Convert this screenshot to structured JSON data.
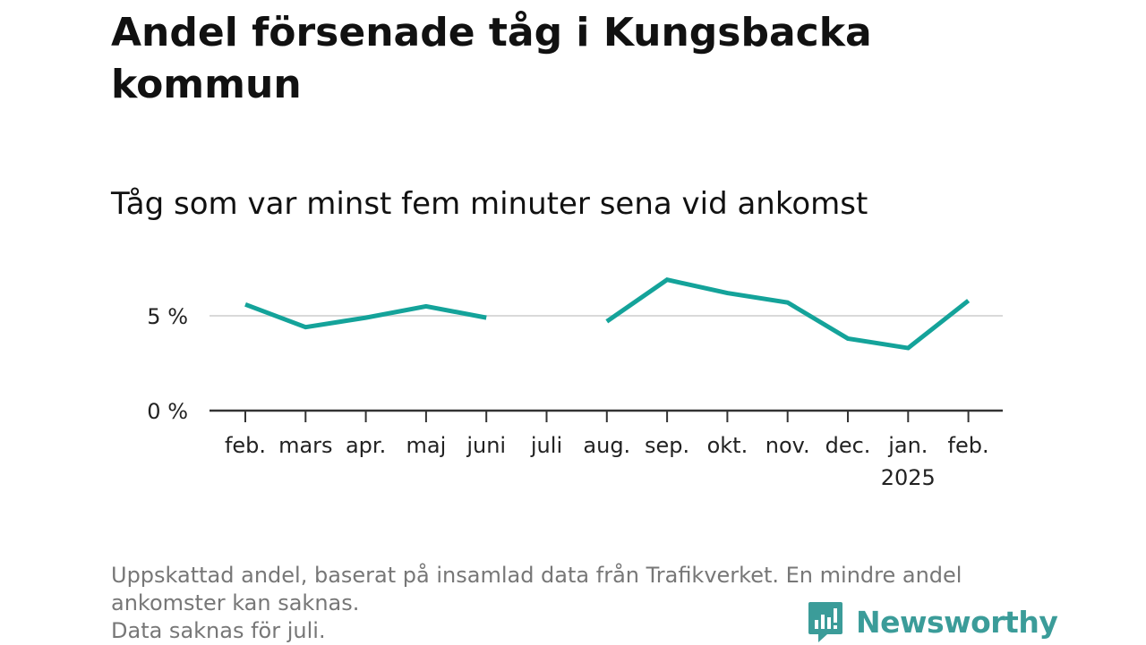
{
  "title": "Andel försenade tåg i Kungsbacka kommun",
  "subtitle": "Tåg som var minst fem minuter sena vid ankomst",
  "footnote": [
    "Uppskattad andel, baserat på insamlad data från Trafikverket. En mindre andel",
    "ankomster kan saknas.",
    "Data saknas för juli."
  ],
  "brand": {
    "name": "Newsworthy",
    "icon": "newsworthy-logo-icon",
    "color": "#3b9c99"
  },
  "colors": {
    "line": "#14a39a",
    "grid": "#d9d9d9",
    "axis": "#333333"
  },
  "chart_data": {
    "type": "line",
    "title": "Andel försenade tåg i Kungsbacka kommun",
    "subtitle": "Tåg som var minst fem minuter sena vid ankomst",
    "categories": [
      "feb.",
      "mars",
      "apr.",
      "maj",
      "juni",
      "juli",
      "aug.",
      "sep.",
      "okt.",
      "nov.",
      "dec.",
      "jan.",
      "feb."
    ],
    "category_sublabels": [
      "",
      "",
      "",
      "",
      "",
      "",
      "",
      "",
      "",
      "",
      "",
      "2025",
      ""
    ],
    "series": [
      {
        "values": [
          5.6,
          4.4,
          4.9,
          5.5,
          4.9,
          null,
          4.7,
          6.9,
          6.2,
          5.7,
          3.8,
          3.3,
          5.8
        ]
      }
    ],
    "ylim": [
      0,
      7.5
    ],
    "yticks": [
      0,
      5
    ],
    "ytick_labels": [
      "0 %",
      "5 %"
    ],
    "xlabel": "",
    "ylabel": "",
    "grid": true,
    "missing": [
      "juli"
    ]
  }
}
